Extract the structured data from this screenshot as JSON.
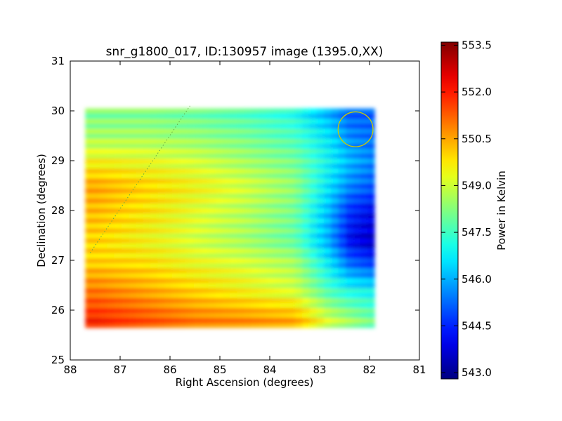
{
  "chart_data": {
    "type": "heatmap",
    "title": "snr_g1800_017, ID:130957 image (1395.0,XX)",
    "xlabel": "Right Ascension (degrees)",
    "ylabel": "Declination (degrees)",
    "xlim": [
      88,
      81
    ],
    "ylim": [
      25,
      31
    ],
    "x_ticks": [
      "88",
      "87",
      "86",
      "85",
      "84",
      "83",
      "82",
      "81"
    ],
    "y_ticks": [
      "25",
      "26",
      "27",
      "28",
      "29",
      "30",
      "31"
    ],
    "colorbar": {
      "label": "Power in Kelvin",
      "range": [
        542.8,
        553.6
      ],
      "ticks": [
        "543.0",
        "544.5",
        "546.0",
        "547.5",
        "549.0",
        "550.5",
        "552.0",
        "553.5"
      ],
      "colormap": "jet"
    },
    "coverage": {
      "ra_range": [
        81.9,
        87.7
      ],
      "dec_range": [
        25.65,
        30.05
      ]
    },
    "grid_ra": [
      87.5,
      86.5,
      85.5,
      84.5,
      83.5,
      82.8,
      82.4,
      82.0
    ],
    "grid_dec": [
      25.8,
      26.4,
      27.0,
      27.4,
      28.0,
      28.5,
      29.0,
      29.5,
      30.0
    ],
    "power_grid": [
      [
        552.0,
        551.5,
        551.0,
        550.8,
        550.5,
        549.0,
        548.5,
        548.0
      ],
      [
        551.0,
        550.5,
        550.0,
        549.5,
        549.0,
        547.5,
        547.0,
        546.8
      ],
      [
        550.0,
        549.8,
        549.3,
        549.0,
        548.5,
        546.5,
        545.0,
        544.5
      ],
      [
        550.0,
        549.5,
        549.0,
        548.5,
        547.8,
        545.8,
        544.0,
        543.5
      ],
      [
        550.3,
        549.8,
        549.2,
        548.7,
        548.0,
        546.0,
        544.5,
        544.0
      ],
      [
        550.5,
        550.0,
        549.5,
        549.0,
        548.3,
        546.5,
        545.5,
        545.0
      ],
      [
        549.5,
        549.3,
        549.0,
        548.5,
        548.0,
        546.8,
        546.0,
        545.5
      ],
      [
        548.5,
        548.5,
        548.3,
        548.0,
        547.5,
        546.5,
        545.5,
        545.2
      ],
      [
        548.0,
        548.0,
        547.8,
        547.5,
        547.0,
        545.8,
        545.0,
        545.0
      ]
    ],
    "annotations": [
      {
        "shape": "circle",
        "ra": 82.28,
        "dec": 29.63,
        "radius_deg": 0.35,
        "color": "#cccc00"
      },
      {
        "shape": "dotted-line",
        "from": [
          87.6,
          27.15
        ],
        "to": [
          85.6,
          30.1
        ],
        "color": "#66aa44"
      }
    ]
  }
}
